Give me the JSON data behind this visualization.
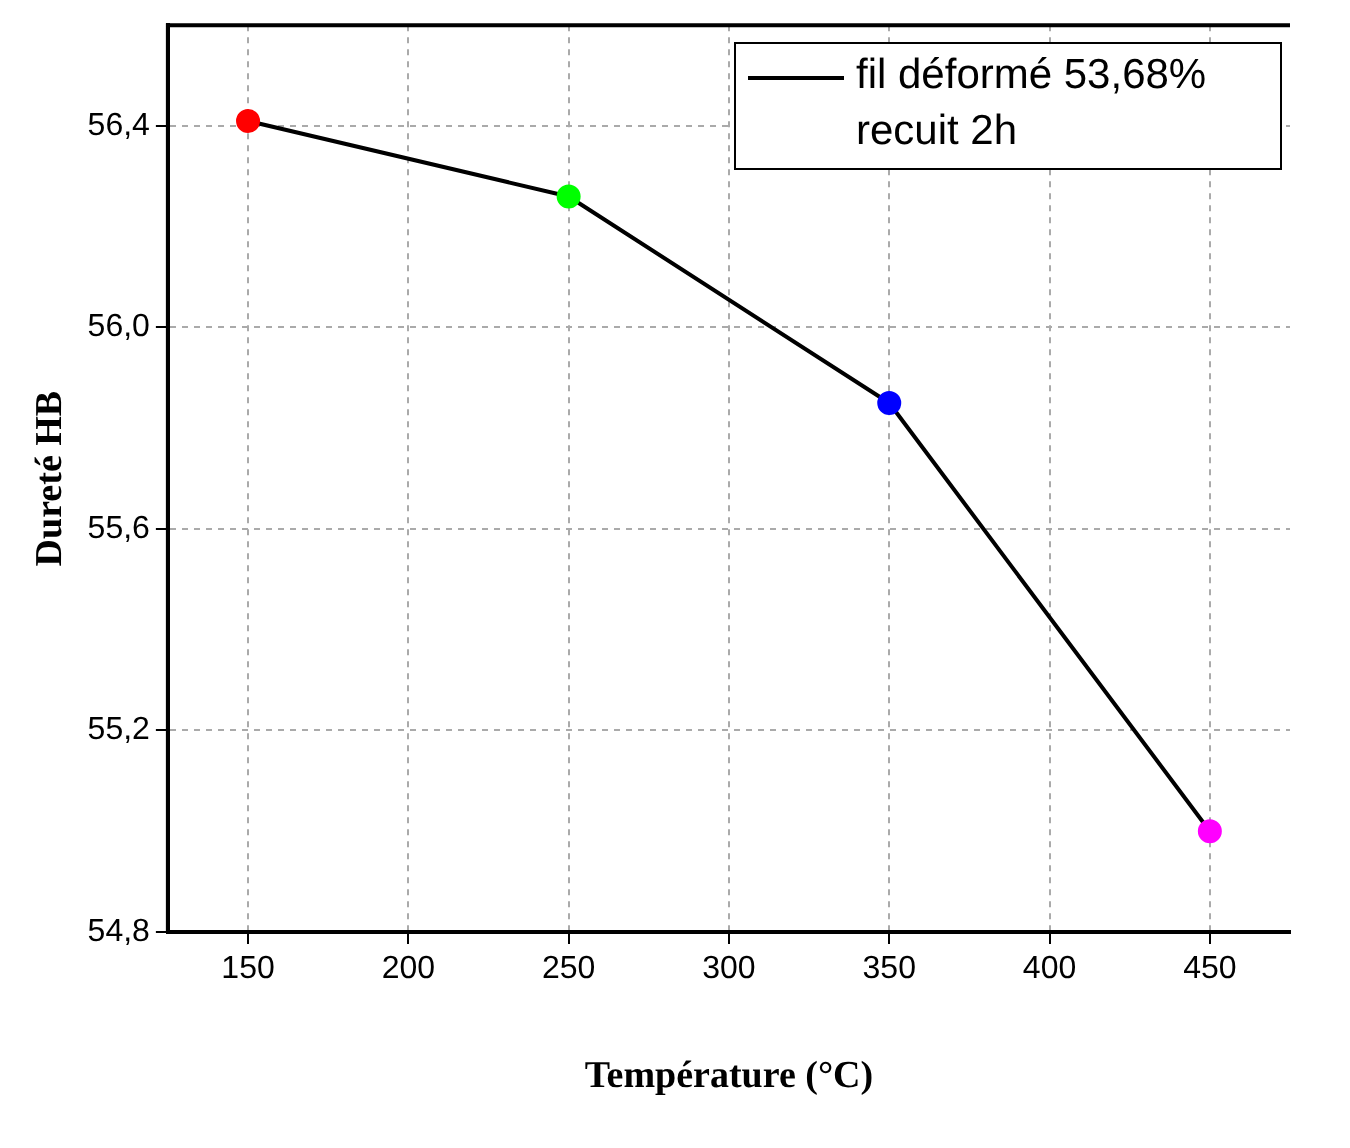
{
  "chart_data": {
    "type": "line",
    "xlabel": "Température (°C)",
    "ylabel": "Dureté HB",
    "x": [
      150,
      250,
      350,
      450
    ],
    "series": [
      {
        "name": "fil déformé 53,68% recuit 2h",
        "color": "#000000",
        "colors": [
          "#ff0000",
          "#00ff00",
          "#0000ff",
          "#ff00ff"
        ],
        "values": [
          56.41,
          56.26,
          55.85,
          55.0
        ]
      }
    ],
    "xlim": [
      125,
      475
    ],
    "xticks": [
      150,
      200,
      250,
      300,
      350,
      400,
      450
    ],
    "ylim": [
      54.8,
      56.6
    ],
    "yticks": [
      {
        "value": 54.8,
        "label": "54,8"
      },
      {
        "value": 55.2,
        "label": "55,2"
      },
      {
        "value": 55.6,
        "label": "55,6"
      },
      {
        "value": 56.0,
        "label": "56,0"
      },
      {
        "value": 56.4,
        "label": "56,4"
      }
    ],
    "grid": true,
    "legend": "top right",
    "marker": "circle",
    "line_style": "solid"
  }
}
